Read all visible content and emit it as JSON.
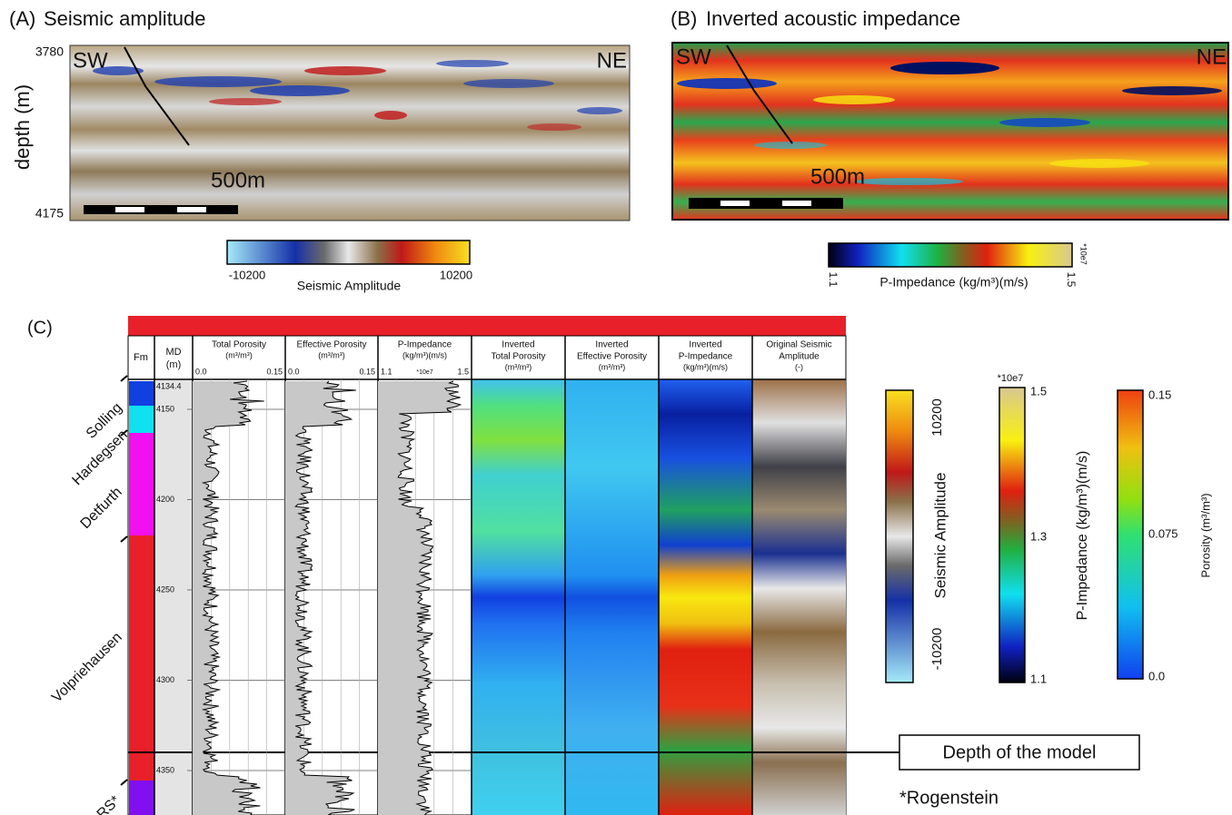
{
  "panel_a": {
    "label": "(A)",
    "title": "Seismic amplitude",
    "y_axis_label": "depth (m)",
    "depth_top": 3780,
    "depth_bottom": 4175,
    "left": "SW",
    "right": "NE",
    "scale": "500m",
    "colorbar": {
      "min": -10200,
      "max": 10200,
      "label": "Seismic Amplitude"
    }
  },
  "panel_b": {
    "label": "(B)",
    "title": "Inverted acoustic impedance",
    "left": "SW",
    "right": "NE",
    "scale": "500m",
    "colorbar": {
      "min": 1.1,
      "max": 1.5,
      "multiplier": "*10e7",
      "label": "P-Impedance (kg/m³)(m/s)"
    }
  },
  "panel_c": {
    "label": "(C)",
    "fm_header": "Fm",
    "md_header": [
      "MD",
      "(m)"
    ],
    "md_ticks": [
      4134.4,
      4150,
      4200,
      4250,
      4300,
      4350
    ],
    "tracks": [
      {
        "title": "Total Porosity",
        "unit": "(m³/m³)",
        "left": "0.0",
        "right": "0.15"
      },
      {
        "title": "Effective Porosity",
        "unit": "(m³/m³)",
        "left": "0.0",
        "right": "0.15"
      },
      {
        "title": "P-Impedance",
        "unit": "(kg/m³)(m/s)",
        "left": "1.1",
        "mid": "*10e7",
        "right": "1.5"
      },
      {
        "title": "Inverted",
        "title2": "Total Porosity",
        "unit": "(m³/m³)"
      },
      {
        "title": "Inverted",
        "title2": "Effective Porosity",
        "unit": "(m³/m³)"
      },
      {
        "title": "Inverted",
        "title2": "P-Impedance",
        "unit": "(kg/m³)(m/s)"
      },
      {
        "title": "Original Seismic",
        "title2": "Amplitude",
        "unit": "(-)"
      }
    ],
    "formations": [
      "Solling",
      "Hardegsen",
      "Detfurth",
      "Volpriehausen",
      "RS*"
    ],
    "colorbars": {
      "seismic": {
        "max": 10200,
        "min": -10200,
        "label": "Seismic Amplitude"
      },
      "impedance": {
        "multiplier": "*10e7",
        "max": 1.5,
        "mid": 1.3,
        "min": 1.1,
        "label": "P-Impedance (kg/m³)(m/s)"
      },
      "porosity": {
        "max": 0.15,
        "mid": 0.075,
        "min": "0.0",
        "label": "Porosity (m³/m³)"
      }
    },
    "model_note": "Depth of the model",
    "footnote": "*Rogenstein"
  }
}
